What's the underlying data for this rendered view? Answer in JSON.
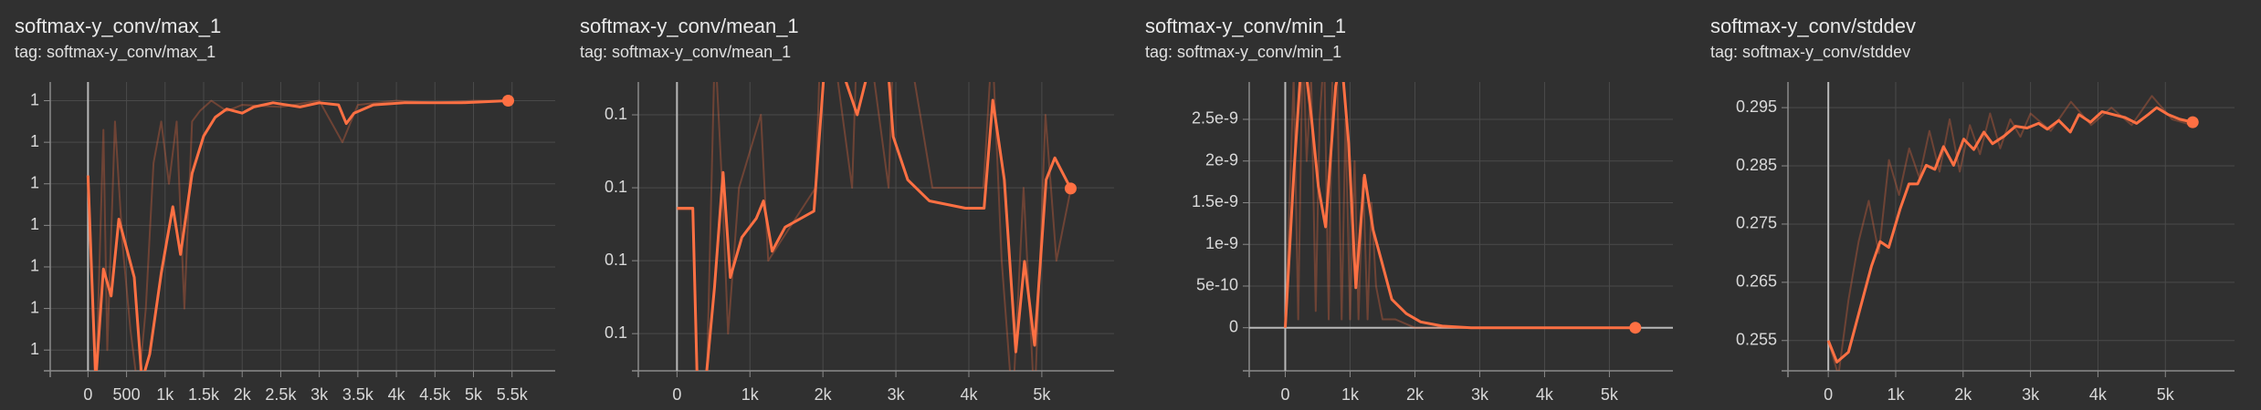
{
  "chart_data": [
    {
      "type": "line",
      "title": "softmax-y_conv/max_1",
      "subtitle": "tag: softmax-y_conv/max_1",
      "xlim": [
        -490,
        6060
      ],
      "xticks": [
        0,
        500,
        {
          "value": 1000,
          "label": "1k"
        },
        {
          "value": 1500,
          "label": "1.5k"
        },
        {
          "value": 2000,
          "label": "2k"
        },
        {
          "value": 2500,
          "label": "2.5k"
        },
        {
          "value": 3000,
          "label": "3k"
        },
        {
          "value": 3500,
          "label": "3.5k"
        },
        {
          "value": 4000,
          "label": "4k"
        },
        {
          "value": 4500,
          "label": "4.5k"
        },
        {
          "value": 5000,
          "label": "5k"
        },
        {
          "value": 5500,
          "label": "5.5k"
        }
      ],
      "ylim": [
        0.99987,
        1.000009
      ],
      "yticks": [
        {
          "value": 0.99988,
          "label": "1"
        },
        {
          "value": 0.9999,
          "label": "1"
        },
        {
          "value": 0.99992,
          "label": "1"
        },
        {
          "value": 0.99994,
          "label": "1"
        },
        {
          "value": 0.99996,
          "label": "1"
        },
        {
          "value": 0.99998,
          "label": "1"
        },
        {
          "value": 1.0,
          "label": "1"
        }
      ],
      "grid": true,
      "series": [
        {
          "color": "#ff7043",
          "opacity": 0.3,
          "x": [
            0,
            100,
            200,
            250,
            350,
            450,
            550,
            650,
            750,
            850,
            950,
            1050,
            1150,
            1250,
            1350,
            1450,
            1600,
            1800,
            2000,
            2500,
            3000,
            3300,
            3500,
            4000,
            4500,
            5000,
            5450
          ],
          "values": [
            0.999964,
            0.99986,
            0.999986,
            0.99988,
            0.99999,
            0.99993,
            0.99989,
            0.99986,
            0.9999,
            0.99997,
            0.99999,
            0.99996,
            0.99999,
            0.9999,
            0.99999,
            0.999995,
            1.0,
            0.999995,
            0.999998,
            0.999997,
            1.0,
            0.99998,
            0.999998,
            1.0,
            0.999999,
            1.0,
            1.0
          ]
        },
        {
          "color": "#ff7043",
          "end_marker": true,
          "x": [
            0,
            100,
            200,
            300,
            400,
            600,
            700,
            800,
            950,
            1100,
            1200,
            1350,
            1500,
            1650,
            1800,
            2000,
            2150,
            2400,
            2750,
            3000,
            3250,
            3350,
            3450,
            3700,
            4100,
            4500,
            4850,
            5450
          ],
          "values": [
            0.999964,
            0.999865,
            0.999919,
            0.999906,
            0.999943,
            0.999915,
            0.999865,
            0.999878,
            0.999917,
            0.999949,
            0.999926,
            0.999965,
            0.999983,
            0.999992,
            0.999996,
            0.999994,
            0.999997,
            0.999999,
            0.999997,
            0.999999,
            0.999998,
            0.999989,
            0.999994,
            0.999998,
            0.999999,
            0.999999,
            0.999999,
            1.0
          ]
        }
      ]
    },
    {
      "type": "line",
      "title": "softmax-y_conv/mean_1",
      "subtitle": "tag: softmax-y_conv/mean_1",
      "xlim": [
        -530,
        5990
      ],
      "xticks": [
        0,
        {
          "value": 1000,
          "label": "1k"
        },
        {
          "value": 2000,
          "label": "2k"
        },
        {
          "value": 3000,
          "label": "3k"
        },
        {
          "value": 4000,
          "label": "4k"
        },
        {
          "value": 5000,
          "label": "5k"
        }
      ],
      "ylim": [
        0.1000049,
        0.1000445
      ],
      "yticks": [
        {
          "value": 0.10001,
          "label": "0.1"
        },
        {
          "value": 0.10002,
          "label": "0.1"
        },
        {
          "value": 0.10003,
          "label": "0.1"
        },
        {
          "value": 0.10004,
          "label": "0.1"
        }
      ],
      "grid": true,
      "series": [
        {
          "color": "#ff7043",
          "opacity": 0.3,
          "x": [
            0,
            220,
            280,
            400,
            520,
            620,
            700,
            850,
            1150,
            1250,
            1900,
            2000,
            2400,
            2500,
            2900,
            3000,
            3500,
            4200,
            4320,
            4450,
            4600,
            4750,
            4900,
            5050,
            5200,
            5400
          ],
          "values": [
            0.100027,
            0.100027,
            0.1,
            0.1,
            0.10005,
            0.10003,
            0.10001,
            0.10003,
            0.10004,
            0.10002,
            0.10003,
            0.10006,
            0.10003,
            0.10006,
            0.10003,
            0.10006,
            0.10003,
            0.10003,
            0.10005,
            0.10002,
            0.1,
            0.10003,
            0.1,
            0.10004,
            0.10002,
            0.10003
          ]
        },
        {
          "color": "#ff7043",
          "end_marker": true,
          "x": [
            0,
            217,
            277,
            395,
            514,
            632,
            731,
            889,
            1087,
            1186,
            1304,
            1482,
            1877,
            2016,
            2134,
            2470,
            2668,
            2866,
            2964,
            3162,
            3458,
            3953,
            4209,
            4328,
            4486,
            4644,
            4763,
            4901,
            5059,
            5178,
            5395
          ],
          "values": [
            0.1000272,
            0.1000272,
            0.1000035,
            0.1000035,
            0.1000163,
            0.1000321,
            0.1000177,
            0.1000232,
            0.1000258,
            0.1000282,
            0.1000213,
            0.1000246,
            0.1000268,
            0.1000459,
            0.1000499,
            0.10004,
            0.1000479,
            0.1000499,
            0.100037,
            0.1000311,
            0.1000282,
            0.1000272,
            0.1000272,
            0.100042,
            0.1000311,
            0.1000075,
            0.1000199,
            0.1000084,
            0.1000311,
            0.1000341,
            0.1000299
          ]
        }
      ]
    },
    {
      "type": "line",
      "title": "softmax-y_conv/min_1",
      "subtitle": "tag: softmax-y_conv/min_1",
      "xlim": [
        -556,
        5980
      ],
      "xticks": [
        0,
        {
          "value": 1000,
          "label": "1k"
        },
        {
          "value": 2000,
          "label": "2k"
        },
        {
          "value": 3000,
          "label": "3k"
        },
        {
          "value": 4000,
          "label": "4k"
        },
        {
          "value": 5000,
          "label": "5k"
        }
      ],
      "ylim": [
        -5.17e-10,
        2.948e-09
      ],
      "yticks": [
        0,
        5e-10,
        1e-09,
        1.5e-09,
        2e-09,
        2.5e-09
      ],
      "grid": true,
      "series": [
        {
          "color": "#ff7043",
          "opacity": 0.3,
          "x": [
            0,
            130,
            200,
            270,
            330,
            400,
            470,
            530,
            600,
            670,
            730,
            800,
            870,
            930,
            1000,
            1070,
            1130,
            1200,
            1270,
            1330,
            1400,
            1500,
            1700,
            2000,
            2500,
            5400
          ],
          "values": [
            0,
            3e-09,
            1e-10,
            3.5e-09,
            2e-09,
            3e-09,
            2e-10,
            2.5e-09,
            3.3e-09,
            1e-10,
            3.2e-09,
            3e-09,
            1e-10,
            2.5e-09,
            1e-10,
            2e-09,
            1e-10,
            1.8e-09,
            1e-10,
            1.5e-09,
            5e-10,
            1e-10,
            1e-10,
            0,
            0,
            0
          ]
        },
        {
          "color": "#ff7043",
          "end_marker": true,
          "x": [
            0,
            133,
            267,
            400,
            511,
            622,
            778,
            867,
            978,
            1089,
            1222,
            1356,
            1489,
            1644,
            1867,
            2089,
            2422,
            2867,
            5400
          ],
          "values": [
            0,
            1.86e-09,
            3.41e-09,
            2.55e-09,
            1.69e-09,
            1.21e-09,
            2.9e-09,
            3.24e-09,
            2.21e-09,
            4.8e-10,
            1.83e-09,
            1.17e-09,
            7.9e-10,
            3.4e-10,
            1.7e-10,
            7e-11,
            2e-11,
            0,
            0
          ]
        }
      ]
    },
    {
      "type": "line",
      "title": "softmax-y_conv/stddev",
      "subtitle": "tag: softmax-y_conv/stddev",
      "xlim": [
        -598,
        6026
      ],
      "xticks": [
        0,
        {
          "value": 1000,
          "label": "1k"
        },
        {
          "value": 2000,
          "label": "2k"
        },
        {
          "value": 3000,
          "label": "3k"
        },
        {
          "value": 4000,
          "label": "4k"
        },
        {
          "value": 5000,
          "label": "5k"
        }
      ],
      "ylim": [
        0.2498,
        0.2994
      ],
      "yticks": [
        0.255,
        0.265,
        0.275,
        0.285,
        0.295
      ],
      "grid": true,
      "series": [
        {
          "color": "#ff7043",
          "opacity": 0.3,
          "x": [
            0,
            150,
            300,
            450,
            600,
            750,
            900,
            1050,
            1200,
            1350,
            1500,
            1650,
            1800,
            1950,
            2100,
            2250,
            2400,
            2550,
            2700,
            2850,
            3000,
            3300,
            3600,
            3900,
            4200,
            4500,
            4800,
            5100,
            5400
          ],
          "values": [
            0.255,
            0.249,
            0.262,
            0.272,
            0.279,
            0.27,
            0.286,
            0.28,
            0.288,
            0.283,
            0.291,
            0.284,
            0.293,
            0.284,
            0.292,
            0.287,
            0.294,
            0.288,
            0.293,
            0.29,
            0.294,
            0.291,
            0.296,
            0.292,
            0.295,
            0.292,
            0.297,
            0.293,
            0.292
          ]
        },
        {
          "color": "#ff7043",
          "end_marker": true,
          "x": [
            0,
            128,
            299,
            470,
            641,
            769,
            897,
            1068,
            1197,
            1325,
            1453,
            1581,
            1709,
            1859,
            2009,
            2158,
            2308,
            2436,
            2607,
            2778,
            2949,
            3120,
            3248,
            3419,
            3590,
            3718,
            3889,
            4060,
            4231,
            4402,
            4573,
            4744,
            4872,
            5043,
            5214,
            5406
          ],
          "values": [
            0.255,
            0.2513,
            0.253,
            0.2604,
            0.2678,
            0.272,
            0.271,
            0.2777,
            0.2819,
            0.2819,
            0.2851,
            0.2844,
            0.2883,
            0.2851,
            0.2896,
            0.2878,
            0.2908,
            0.2888,
            0.2901,
            0.2918,
            0.2915,
            0.2923,
            0.2913,
            0.2928,
            0.2908,
            0.2938,
            0.2925,
            0.2943,
            0.2938,
            0.2933,
            0.2923,
            0.2938,
            0.295,
            0.2938,
            0.293,
            0.2925
          ]
        }
      ]
    }
  ]
}
